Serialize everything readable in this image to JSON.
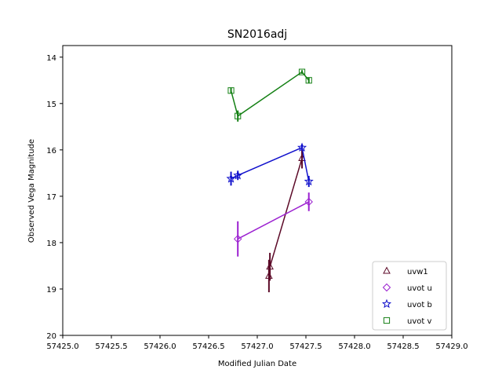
{
  "chart_data": {
    "type": "scatter",
    "title": "SN2016adj",
    "xlabel": "Modified Julian Date",
    "ylabel": "Observed Vega Magnitude",
    "xlim": [
      57425.0,
      57429.0
    ],
    "ylim": [
      20,
      13.75
    ],
    "y_inverted": true,
    "xticks": [
      57425.0,
      57425.5,
      57426.0,
      57426.5,
      57427.0,
      57427.5,
      57428.0,
      57428.5,
      57429.0
    ],
    "xtick_labels": [
      "57425.0",
      "57425.5",
      "57426.0",
      "57426.5",
      "57427.0",
      "57427.5",
      "57428.0",
      "57428.5",
      "57429.0"
    ],
    "yticks": [
      14,
      15,
      16,
      17,
      18,
      19,
      20
    ],
    "ytick_labels": [
      "14",
      "15",
      "16",
      "17",
      "18",
      "19",
      "20"
    ],
    "grid": false,
    "legend_position": "bottom-right",
    "series": [
      {
        "name": "uvw1",
        "color": "#5c0a28",
        "marker": "triangle",
        "x": [
          57427.12,
          57427.13,
          57427.46
        ],
        "y": [
          18.72,
          18.52,
          16.18
        ],
        "yerr": [
          0.35,
          0.3,
          0.22
        ]
      },
      {
        "name": "uvot u",
        "color": "#9b20d0",
        "marker": "diamond",
        "x": [
          57426.8,
          57427.53
        ],
        "y": [
          17.92,
          17.12
        ],
        "yerr": [
          0.38,
          0.2
        ]
      },
      {
        "name": "uvot b",
        "color": "#1010cc",
        "marker": "star",
        "x": [
          57426.73,
          57426.8,
          57427.46,
          57427.53
        ],
        "y": [
          16.62,
          16.55,
          15.95,
          16.68
        ],
        "yerr": [
          0.15,
          0.1,
          0.06,
          0.12
        ]
      },
      {
        "name": "uvot v",
        "color": "#148014",
        "marker": "square",
        "x": [
          57426.73,
          57426.8,
          57427.46,
          57427.53
        ],
        "y": [
          14.72,
          15.27,
          14.32,
          14.5
        ],
        "yerr": [
          0.06,
          0.12,
          0.04,
          0.06
        ]
      }
    ]
  }
}
